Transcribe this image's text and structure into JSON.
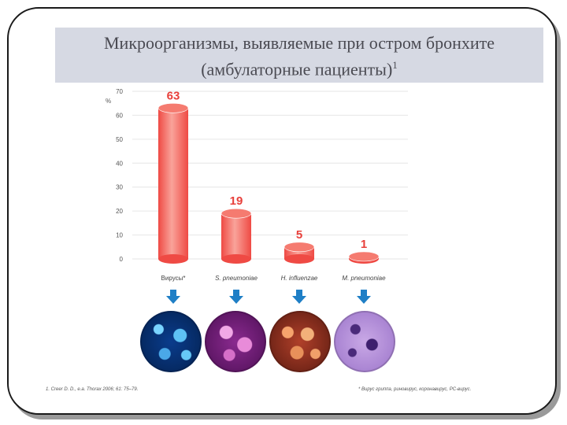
{
  "title": {
    "line1": "Микроорганизмы, выявляемые при остром бронхите",
    "line2": "(амбулаторные пациенты)",
    "sup": "1"
  },
  "chart_data": {
    "type": "bar",
    "ylabel": "%",
    "ylim": [
      0,
      70
    ],
    "yticks": [
      0,
      10,
      20,
      30,
      40,
      50,
      60,
      70
    ],
    "grid": true,
    "categories": [
      "Вирусы*",
      "S. pneumoniae",
      "H. influenzae",
      "M. pneumoniae"
    ],
    "values": [
      63,
      19,
      5,
      1
    ],
    "data_labels": [
      "63",
      "19",
      "5",
      "1"
    ]
  },
  "colors": {
    "bar_main": "#ef4a44",
    "bar_light": "#f9a39a",
    "bar_top": "#f57b70",
    "label": "#e8403b",
    "arrow": "#1f7fc6",
    "grid": "#e6e6e6"
  },
  "images": [
    {
      "name": "virus-micrograph-icon"
    },
    {
      "name": "s-pneumoniae-micrograph-icon"
    },
    {
      "name": "h-influenzae-micrograph-icon"
    },
    {
      "name": "m-pneumoniae-micrograph-icon"
    }
  ],
  "footnotes": {
    "left": "1. Creer D. D., e.a. Thorax 2006; 61: 75–79.",
    "right": "* Вирус гриппа, риновирус, коронавирус, РС-вирус."
  }
}
